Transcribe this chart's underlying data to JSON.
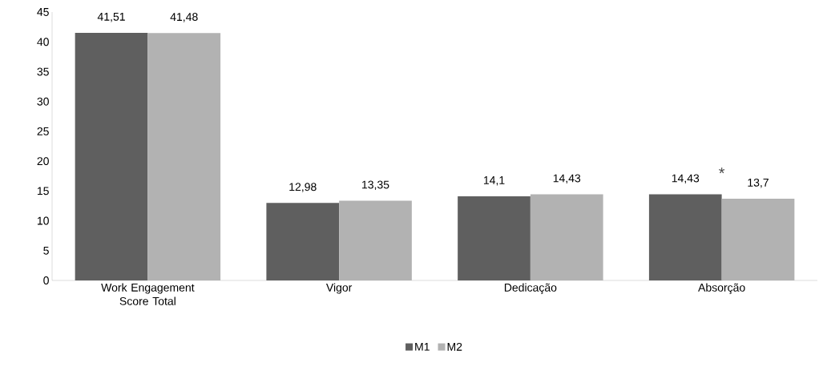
{
  "chart_data": {
    "type": "bar",
    "categories": [
      "Work Engagement Score Total",
      "Vigor",
      "Dedicação",
      "Absorção"
    ],
    "series": [
      {
        "name": "M1",
        "color": "#5f5f5f",
        "values": [
          41.51,
          12.98,
          14.1,
          14.43
        ],
        "value_labels": [
          "41,51",
          "12,98",
          "14,1",
          "14,43"
        ]
      },
      {
        "name": "M2",
        "color": "#b2b2b2",
        "values": [
          41.48,
          13.35,
          14.43,
          13.7
        ],
        "value_labels": [
          "41,48",
          "13,35",
          "14,43",
          "13,7"
        ]
      }
    ],
    "ylim": [
      0,
      45
    ],
    "yticks": [
      0,
      5,
      10,
      15,
      20,
      25,
      30,
      35,
      40,
      45
    ],
    "grid": false,
    "legend": "bottom",
    "annotations": [
      "*"
    ]
  }
}
